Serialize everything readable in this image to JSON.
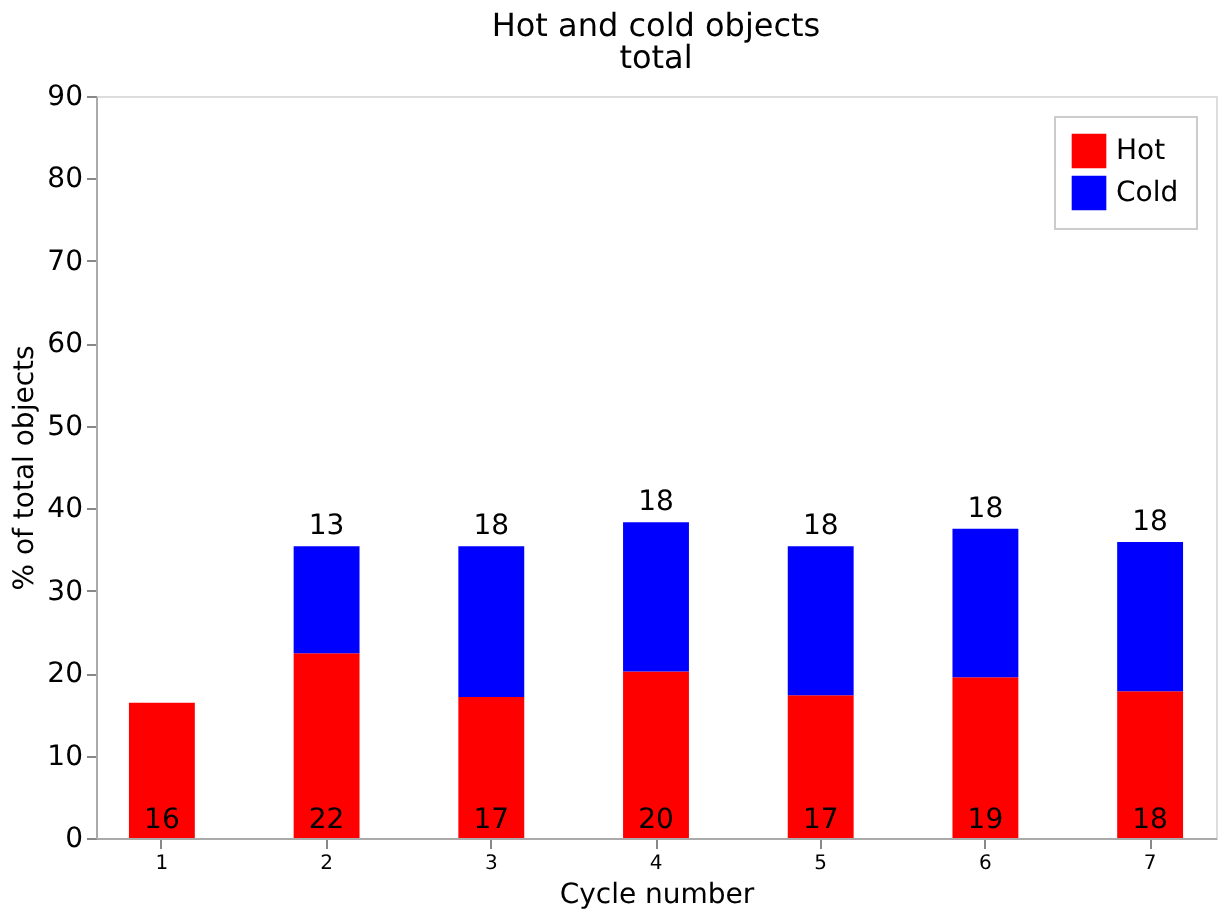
{
  "chart_data": {
    "type": "bar",
    "title": "Hot and cold objects",
    "subtitle": "total",
    "xlabel": "Cycle number",
    "ylabel": "% of total objects",
    "categories": [
      "1",
      "2",
      "3",
      "4",
      "5",
      "6",
      "7"
    ],
    "stacked": true,
    "ylim": [
      0,
      90
    ],
    "yticks": [
      0,
      10,
      20,
      30,
      40,
      50,
      60,
      70,
      80,
      90
    ],
    "grid": false,
    "legend": "top right",
    "series": [
      {
        "name": "Hot",
        "color": "#ff0000",
        "values": [
          16.4,
          22.4,
          17.1,
          20.2,
          17.3,
          19.5,
          17.8
        ],
        "value_labels": [
          "16",
          "22",
          "17",
          "20",
          "17",
          "19",
          "18"
        ]
      },
      {
        "name": "Cold",
        "color": "#0000ff",
        "values": [
          null,
          13.0,
          18.3,
          18.1,
          18.1,
          18.0,
          18.1
        ],
        "value_labels": [
          null,
          "13",
          "18",
          "18",
          "18",
          "18",
          "18"
        ]
      }
    ]
  }
}
